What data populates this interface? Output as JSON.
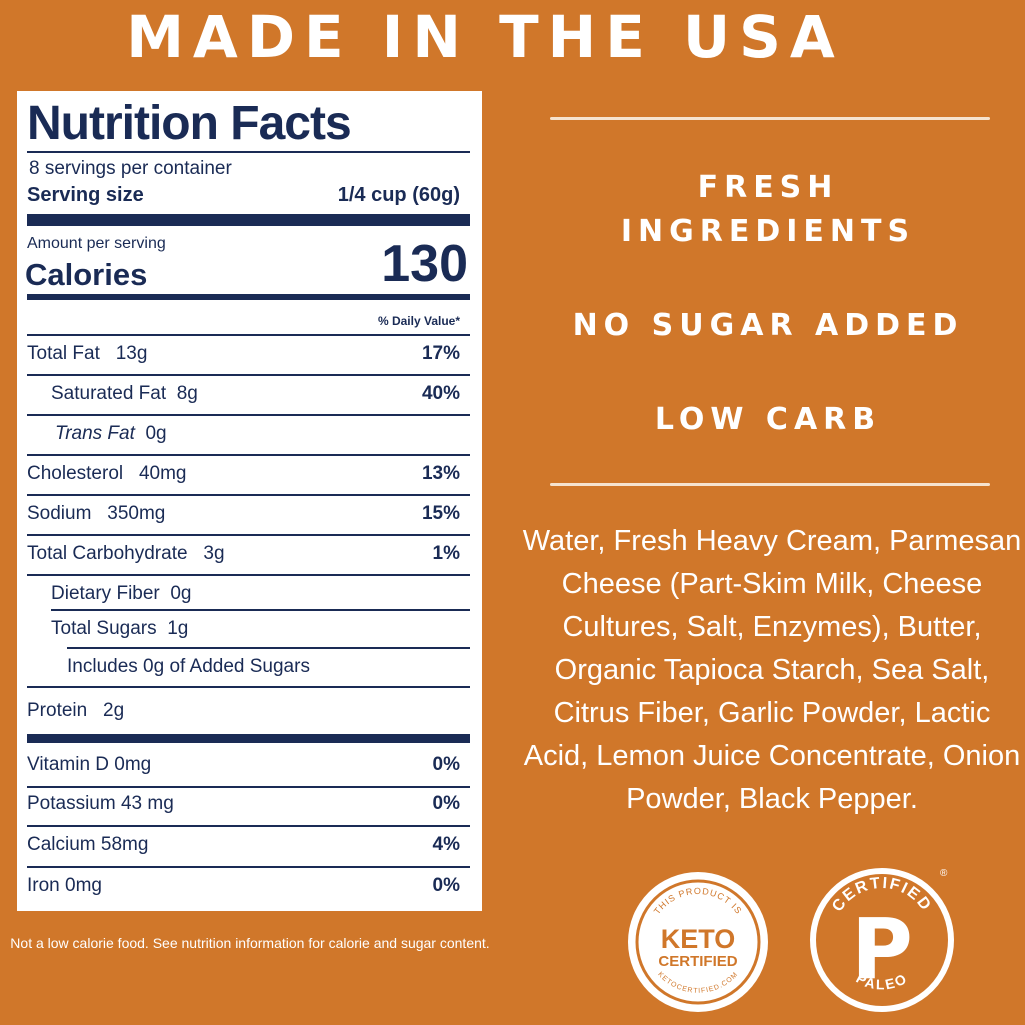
{
  "headline": "MADE IN THE USA",
  "nutrition": {
    "title": "Nutrition Facts",
    "servings_per_container": "8 servings per container",
    "serving_size_label": "Serving size",
    "serving_size_value": "1/4 cup  (60g)",
    "amount_per_serving": "Amount per serving",
    "calories_label": "Calories",
    "calories_value": "130",
    "daily_value_header": "% Daily Value*",
    "rows": [
      {
        "label": "Total Fat",
        "amount": "13g",
        "pct": "17%"
      },
      {
        "label": "Saturated Fat",
        "amount": "8g",
        "pct": "40%"
      },
      {
        "label": "Trans Fat",
        "amount": "0g",
        "pct": ""
      },
      {
        "label": "Cholesterol",
        "amount": "40mg",
        "pct": "13%"
      },
      {
        "label": "Sodium",
        "amount": "350mg",
        "pct": "15%"
      },
      {
        "label": "Total Carbohydrate",
        "amount": "3g",
        "pct": "1%"
      },
      {
        "label": "Dietary Fiber",
        "amount": "0g",
        "pct": ""
      },
      {
        "label": "Total Sugars",
        "amount": "1g",
        "pct": ""
      },
      {
        "label": "Includes 0g of Added Sugars",
        "amount": "",
        "pct": ""
      },
      {
        "label": "Protein",
        "amount": "2g",
        "pct": ""
      }
    ],
    "vitamins": [
      {
        "label": "Vitamin D 0mg",
        "pct": "0%"
      },
      {
        "label": "Potassium 43 mg",
        "pct": "0%"
      },
      {
        "label": "Calcium 58mg",
        "pct": "4%"
      },
      {
        "label": "Iron 0mg",
        "pct": "0%"
      }
    ]
  },
  "disclaimer": "Not a low calorie food. See nutrition information for calorie and sugar content.",
  "features": {
    "fresh_line1": "FRESH",
    "fresh_line2": "INGREDIENTS",
    "no_sugar": "NO SUGAR ADDED",
    "low_carb": "LOW CARB"
  },
  "ingredients": "Water, Fresh Heavy Cream, Parmesan Cheese (Part-Skim Milk, Cheese Cultures, Salt, Enzymes), Butter, Organic Tapioca Starch, Sea Salt, Citrus Fiber, Garlic Powder, Lactic Acid, Lemon Juice Concentrate, Onion Powder, Black Pepper.",
  "badges": {
    "keto_top": "THIS PRODUCT IS",
    "keto_main1": "KETO",
    "keto_main2": "CERTIFIED",
    "keto_bottom": "KETOCERTIFIED.COM",
    "paleo_top": "CERTIFIED",
    "paleo_letter": "P",
    "paleo_bottom": "PALEO",
    "registered": "®"
  },
  "colors": {
    "background": "#d0772a",
    "label_navy": "#1a2b55",
    "white": "#ffffff"
  }
}
